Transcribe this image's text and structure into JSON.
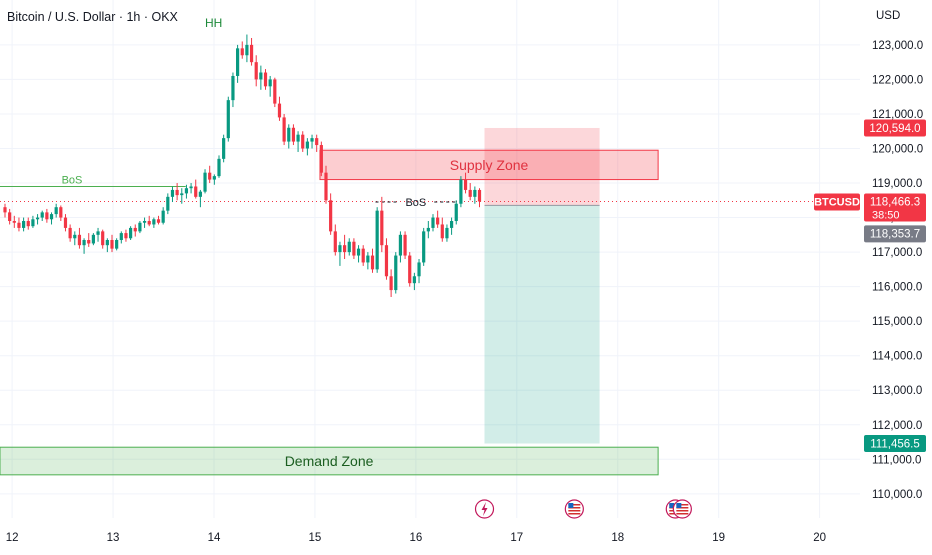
{
  "header": {
    "title": "Bitcoin / U.S. Dollar · 1h · OKX",
    "currency": "USD"
  },
  "chart_data": {
    "type": "candlestick",
    "y_ticks": [
      110000,
      111000,
      112000,
      113000,
      114000,
      115000,
      116000,
      117000,
      118000,
      119000,
      120000,
      121000,
      122000,
      123000
    ],
    "y_tick_labels": [
      "110,000.0",
      "111,000.0",
      "112,000.0",
      "113,000.0",
      "114,000.0",
      "115,000.0",
      "116,000.0",
      "117,000.0",
      "118,000.0",
      "119,000.0",
      "120,000.0",
      "121,000.0",
      "122,000.0",
      "123,000.0"
    ],
    "ylim": [
      109300,
      124300
    ],
    "x_tick_labels": [
      "12",
      "13",
      "14",
      "15",
      "16",
      "17",
      "18",
      "19",
      "20"
    ],
    "x_range_days": [
      11.88,
      20.4
    ],
    "annotations": {
      "hh": "HH",
      "bos_left": "BoS",
      "bos_right": "BoS",
      "supply_zone": "Supply Zone",
      "demand_zone": "Demand Zone"
    },
    "zones": {
      "supply": {
        "from_day": 15.05,
        "to_day": 18.4,
        "low": 119100,
        "high": 119950
      },
      "demand": {
        "from_day": 11.88,
        "to_day": 18.4,
        "low": 110550,
        "high": 111350
      }
    },
    "position": {
      "from_day": 16.68,
      "to_day": 17.82,
      "entry": 118353.7,
      "stop": 120594.0,
      "target": 111456.5
    },
    "bos": {
      "left": {
        "from_day": 11.88,
        "to_day": 13.72,
        "price": 118900
      },
      "right": {
        "from_day": 15.6,
        "to_day": 16.4,
        "price": 118450
      }
    },
    "price_labels": {
      "stop": "120,594.0",
      "symbol": "BTCUSD",
      "last": "118,466.3",
      "countdown": "38:50",
      "entry": "118,353.7",
      "target": "111,456.5"
    },
    "last_price": 118466.3,
    "candles": [
      [
        118300,
        118400,
        118000,
        118150
      ],
      [
        118150,
        118250,
        117800,
        117900
      ],
      [
        117900,
        118050,
        117700,
        117850
      ],
      [
        117850,
        118000,
        117600,
        117700
      ],
      [
        117700,
        118000,
        117600,
        117900
      ],
      [
        117900,
        118000,
        117650,
        117750
      ],
      [
        117750,
        118050,
        117700,
        117950
      ],
      [
        117950,
        118100,
        117800,
        118000
      ],
      [
        118000,
        118200,
        117900,
        118150
      ],
      [
        118150,
        118250,
        117850,
        117950
      ],
      [
        117950,
        118150,
        117800,
        118100
      ],
      [
        118100,
        118400,
        118000,
        118300
      ],
      [
        118300,
        118350,
        117900,
        118000
      ],
      [
        118000,
        118100,
        117600,
        117700
      ],
      [
        117700,
        117800,
        117300,
        117400
      ],
      [
        117400,
        117600,
        117200,
        117500
      ],
      [
        117500,
        117700,
        117100,
        117200
      ],
      [
        117200,
        117400,
        116950,
        117350
      ],
      [
        117350,
        117550,
        117150,
        117250
      ],
      [
        117250,
        117550,
        117200,
        117500
      ],
      [
        117500,
        117700,
        117300,
        117600
      ],
      [
        117600,
        117650,
        117100,
        117200
      ],
      [
        117200,
        117400,
        117000,
        117350
      ],
      [
        117350,
        117500,
        117000,
        117100
      ],
      [
        117100,
        117400,
        117050,
        117350
      ],
      [
        117350,
        117600,
        117250,
        117550
      ],
      [
        117550,
        117650,
        117300,
        117400
      ],
      [
        117400,
        117750,
        117350,
        117700
      ],
      [
        117700,
        117800,
        117450,
        117600
      ],
      [
        117600,
        117900,
        117550,
        117850
      ],
      [
        117850,
        118000,
        117700,
        117900
      ],
      [
        117900,
        118050,
        117750,
        117800
      ],
      [
        117800,
        118000,
        117700,
        117950
      ],
      [
        117950,
        118050,
        117800,
        117850
      ],
      [
        117850,
        118300,
        117800,
        118200
      ],
      [
        118200,
        118700,
        118100,
        118600
      ],
      [
        118600,
        118900,
        118450,
        118800
      ],
      [
        118800,
        119000,
        118500,
        118650
      ],
      [
        118650,
        118850,
        118400,
        118700
      ],
      [
        118700,
        118950,
        118550,
        118850
      ],
      [
        118850,
        119000,
        118700,
        118900
      ],
      [
        118900,
        119100,
        118550,
        118600
      ],
      [
        118600,
        118800,
        118300,
        118750
      ],
      [
        118750,
        119400,
        118700,
        119300
      ],
      [
        119300,
        119500,
        119000,
        119100
      ],
      [
        119100,
        119250,
        118950,
        119200
      ],
      [
        119200,
        119800,
        119150,
        119700
      ],
      [
        119700,
        120400,
        119600,
        120300
      ],
      [
        120300,
        121500,
        120200,
        121400
      ],
      [
        121400,
        122200,
        121200,
        122100
      ],
      [
        122100,
        123000,
        121900,
        122900
      ],
      [
        122900,
        123100,
        122600,
        122700
      ],
      [
        122700,
        123300,
        122500,
        123000
      ],
      [
        123000,
        123200,
        122400,
        122500
      ],
      [
        122500,
        122700,
        121800,
        122000
      ],
      [
        122000,
        122400,
        121700,
        122200
      ],
      [
        122200,
        122300,
        121700,
        121800
      ],
      [
        121800,
        122100,
        121500,
        122000
      ],
      [
        122000,
        122050,
        121200,
        121300
      ],
      [
        121300,
        121500,
        120800,
        120900
      ],
      [
        120900,
        121000,
        120100,
        120200
      ],
      [
        120200,
        120700,
        120000,
        120600
      ],
      [
        120600,
        120700,
        120100,
        120200
      ],
      [
        120200,
        120500,
        119900,
        120400
      ],
      [
        120400,
        120500,
        119900,
        120000
      ],
      [
        120000,
        120300,
        119800,
        120200
      ],
      [
        120200,
        120400,
        120000,
        120300
      ],
      [
        120300,
        120400,
        119900,
        120100
      ],
      [
        120100,
        120200,
        119200,
        119300
      ],
      [
        119300,
        119500,
        118400,
        118500
      ],
      [
        118500,
        118700,
        117500,
        117600
      ],
      [
        117600,
        117800,
        116900,
        117000
      ],
      [
        117000,
        117300,
        116600,
        117200
      ],
      [
        117200,
        117500,
        116800,
        117000
      ],
      [
        117000,
        117400,
        116900,
        117300
      ],
      [
        117300,
        117400,
        116800,
        116900
      ],
      [
        116900,
        117200,
        116700,
        117100
      ],
      [
        117100,
        117200,
        116600,
        116700
      ],
      [
        116700,
        117000,
        116500,
        116900
      ],
      [
        116900,
        117100,
        116400,
        116500
      ],
      [
        116500,
        118300,
        116400,
        118200
      ],
      [
        118200,
        118600,
        117000,
        117200
      ],
      [
        117200,
        117400,
        116200,
        116300
      ],
      [
        116300,
        116500,
        115700,
        115900
      ],
      [
        115900,
        117000,
        115800,
        116900
      ],
      [
        116900,
        117600,
        116700,
        117500
      ],
      [
        117500,
        117600,
        116800,
        116900
      ],
      [
        116900,
        117000,
        116000,
        116100
      ],
      [
        116100,
        116400,
        115900,
        116300
      ],
      [
        116300,
        116800,
        116100,
        116700
      ],
      [
        116700,
        117700,
        116600,
        117600
      ],
      [
        117600,
        117900,
        117400,
        117700
      ],
      [
        117700,
        118100,
        117600,
        118000
      ],
      [
        118000,
        118200,
        117700,
        117800
      ],
      [
        117800,
        118000,
        117300,
        117400
      ],
      [
        117400,
        117800,
        117300,
        117700
      ],
      [
        117700,
        118000,
        117500,
        117900
      ],
      [
        117900,
        118500,
        117800,
        118400
      ],
      [
        118400,
        119200,
        118300,
        119100
      ],
      [
        119100,
        119300,
        118700,
        118800
      ],
      [
        118800,
        119000,
        118500,
        118600
      ],
      [
        118600,
        118900,
        118400,
        118800
      ],
      [
        118800,
        118850,
        118300,
        118466.3
      ]
    ]
  }
}
